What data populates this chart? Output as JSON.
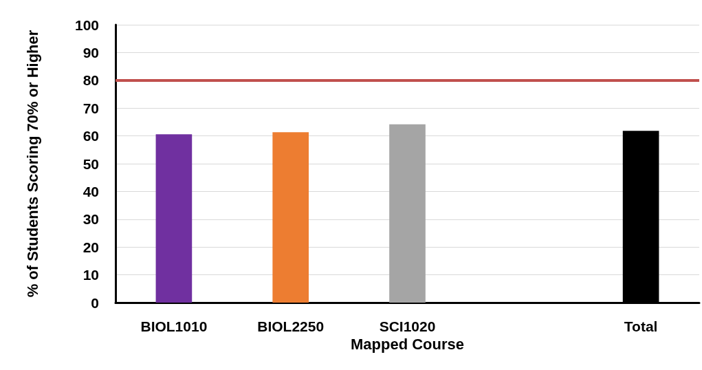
{
  "chart_data": {
    "type": "bar",
    "xlabel": "Mapped Course",
    "ylabel": "% of Students Scoring 70% or Higher",
    "categories": [
      "BIOL1010",
      "BIOL2250",
      "SCI1020",
      null,
      "Total"
    ],
    "values": [
      60.6,
      61.3,
      64.2,
      null,
      61.8
    ],
    "colors": [
      "#7030a0",
      "#ed7d31",
      "#a5a5a5",
      "#7f7f7f",
      "#000000"
    ],
    "ylim": [
      0,
      100
    ],
    "yticks": [
      0,
      10,
      20,
      30,
      40,
      50,
      60,
      70,
      80,
      90,
      100
    ],
    "grid": "y",
    "ref_lines": [
      {
        "axis": "y",
        "value": 80,
        "color": "#c0504d"
      }
    ]
  }
}
